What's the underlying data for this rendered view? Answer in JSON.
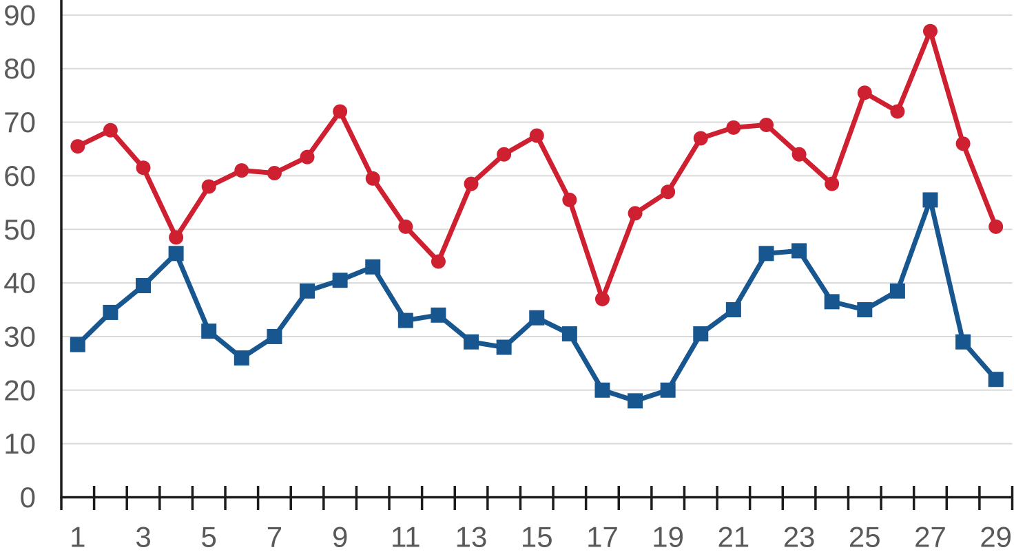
{
  "chart_data": {
    "type": "line",
    "title": "",
    "xlabel": "",
    "ylabel": "",
    "legend": "none",
    "grid": "horizontal",
    "background": "#ffffff",
    "gridline_color": "#d9d9d9",
    "axis_color": "#1c1c1c",
    "tick_label_color": "#595959",
    "ylim": [
      0,
      92
    ],
    "yticks": [
      0,
      10,
      20,
      30,
      40,
      50,
      60,
      70,
      80,
      90
    ],
    "categories": [
      1,
      2,
      3,
      4,
      5,
      6,
      7,
      8,
      9,
      10,
      11,
      12,
      13,
      14,
      15,
      16,
      17,
      18,
      19,
      20,
      21,
      22,
      23,
      24,
      25,
      26,
      27,
      28,
      29
    ],
    "x_axis_labels": [
      "1",
      "3",
      "5",
      "7",
      "9",
      "11",
      "13",
      "15",
      "17",
      "19",
      "21",
      "23",
      "25",
      "27",
      "29"
    ],
    "series": [
      {
        "name": "red-series",
        "marker": "circle",
        "color": "#ce2030",
        "values": [
          65.5,
          68.5,
          61.5,
          48.5,
          58,
          61,
          60.5,
          63.5,
          72,
          59.5,
          50.5,
          44,
          58.5,
          64,
          67.5,
          55.5,
          37,
          53,
          57,
          67,
          69,
          69.5,
          64,
          58.5,
          75.5,
          72,
          87,
          66,
          50.5
        ]
      },
      {
        "name": "blue-series",
        "marker": "square",
        "color": "#17568f",
        "values": [
          28.5,
          34.5,
          39.5,
          45.5,
          31,
          26,
          30,
          38.5,
          40.5,
          43,
          33,
          34,
          29,
          28,
          33.5,
          30.5,
          20,
          18,
          20,
          30.5,
          35,
          45.5,
          46,
          36.5,
          35,
          38.5,
          55.5,
          29,
          22
        ]
      }
    ]
  }
}
